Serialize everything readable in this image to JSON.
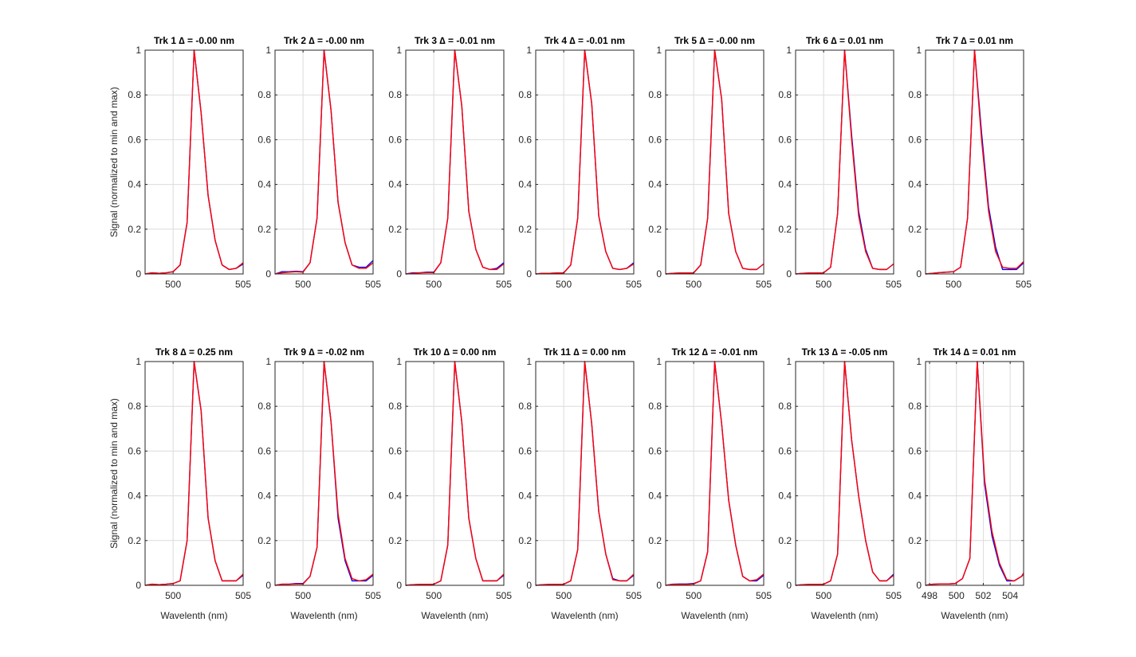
{
  "chart_data": {
    "type": "line",
    "ylabel": "Signal (normalized to min and max)",
    "xlabel": "Wavelenth (nm)",
    "ylim": [
      0,
      1
    ],
    "yticks": [
      0,
      0.2,
      0.4,
      0.6,
      0.8,
      1
    ],
    "ytick_labels": [
      "0",
      "0.2",
      "0.4",
      "0.6",
      "0.8",
      "1"
    ],
    "grid": true,
    "series_colors": {
      "blue": "#0000ff",
      "red": "#ff0000"
    },
    "subplots": [
      {
        "title": "Trk 1 ∆ = -0.00 nm",
        "xlim": [
          498,
          505
        ],
        "xticks": [
          500,
          505
        ],
        "xtick_labels": [
          "500",
          "505"
        ],
        "xlabel": "",
        "ylabel": "Signal (normalized to min and max)",
        "x": [
          498,
          498.5,
          499,
          499.5,
          500,
          500.5,
          501,
          501.5,
          502,
          502.5,
          503,
          503.5,
          504,
          504.5,
          505
        ],
        "series": [
          {
            "values": [
              0,
              0.005,
              0.003,
              0.005,
              0.01,
              0.04,
              0.23,
              1,
              0.72,
              0.35,
              0.15,
              0.04,
              0.02,
              0.025,
              0.045
            ]
          },
          {
            "values": [
              0,
              0.005,
              0.003,
              0.005,
              0.01,
              0.04,
              0.23,
              1,
              0.72,
              0.35,
              0.15,
              0.04,
              0.02,
              0.025,
              0.05
            ]
          }
        ]
      },
      {
        "title": "Trk 2 ∆ = -0.00 nm",
        "xlim": [
          498,
          505
        ],
        "xticks": [
          500,
          505
        ],
        "xtick_labels": [
          "500",
          "505"
        ],
        "xlabel": "",
        "ylabel": "",
        "x": [
          498,
          498.5,
          499,
          499.5,
          500,
          500.5,
          501,
          501.5,
          502,
          502.5,
          503,
          503.5,
          504,
          504.5,
          505
        ],
        "series": [
          {
            "values": [
              0,
              0.01,
              0.01,
              0.012,
              0.01,
              0.05,
              0.25,
              1,
              0.73,
              0.32,
              0.14,
              0.04,
              0.03,
              0.03,
              0.06
            ]
          },
          {
            "values": [
              0,
              0.005,
              0.008,
              0.01,
              0.008,
              0.05,
              0.25,
              1,
              0.73,
              0.32,
              0.14,
              0.04,
              0.025,
              0.025,
              0.05
            ]
          }
        ]
      },
      {
        "title": "Trk 3 ∆ = -0.01 nm",
        "xlim": [
          498,
          505
        ],
        "xticks": [
          500,
          505
        ],
        "xtick_labels": [
          "500",
          "505"
        ],
        "xlabel": "",
        "ylabel": "",
        "x": [
          498,
          498.5,
          499,
          499.5,
          500,
          500.5,
          501,
          501.5,
          502,
          502.5,
          503,
          503.5,
          504,
          504.5,
          505
        ],
        "series": [
          {
            "values": [
              0,
              0.005,
              0.005,
              0.008,
              0.008,
              0.05,
              0.25,
              1,
              0.75,
              0.28,
              0.11,
              0.03,
              0.02,
              0.025,
              0.05
            ]
          },
          {
            "values": [
              0,
              0.003,
              0.005,
              0.006,
              0.006,
              0.05,
              0.25,
              1,
              0.75,
              0.28,
              0.11,
              0.03,
              0.02,
              0.02,
              0.045
            ]
          }
        ]
      },
      {
        "title": "Trk 4 ∆ = -0.01 nm",
        "xlim": [
          498,
          505
        ],
        "xticks": [
          500,
          505
        ],
        "xtick_labels": [
          "500",
          "505"
        ],
        "xlabel": "",
        "ylabel": "",
        "x": [
          498,
          498.5,
          499,
          499.5,
          500,
          500.5,
          501,
          501.5,
          502,
          502.5,
          503,
          503.5,
          504,
          504.5,
          505
        ],
        "series": [
          {
            "values": [
              0,
              0.003,
              0.003,
              0.004,
              0.005,
              0.04,
              0.25,
              1,
              0.76,
              0.26,
              0.1,
              0.025,
              0.02,
              0.025,
              0.05
            ]
          },
          {
            "values": [
              0,
              0.003,
              0.003,
              0.004,
              0.005,
              0.04,
              0.25,
              1,
              0.76,
              0.26,
              0.1,
              0.025,
              0.02,
              0.025,
              0.045
            ]
          }
        ]
      },
      {
        "title": "Trk 5 ∆ = -0.00 nm",
        "xlim": [
          498,
          505
        ],
        "xticks": [
          500,
          505
        ],
        "xtick_labels": [
          "500",
          "505"
        ],
        "xlabel": "",
        "ylabel": "",
        "x": [
          498,
          498.5,
          499,
          499.5,
          500,
          500.5,
          501,
          501.5,
          502,
          502.5,
          503,
          503.5,
          504,
          504.5,
          505
        ],
        "series": [
          {
            "values": [
              0,
              0.003,
              0.004,
              0.004,
              0.005,
              0.04,
              0.25,
              1,
              0.78,
              0.27,
              0.1,
              0.025,
              0.02,
              0.02,
              0.045
            ]
          },
          {
            "values": [
              0,
              0.003,
              0.004,
              0.004,
              0.005,
              0.04,
              0.25,
              1,
              0.78,
              0.27,
              0.1,
              0.025,
              0.02,
              0.02,
              0.045
            ]
          }
        ]
      },
      {
        "title": "Trk 6 ∆ = 0.01 nm",
        "xlim": [
          498,
          505
        ],
        "xticks": [
          500,
          505
        ],
        "xtick_labels": [
          "500",
          "505"
        ],
        "xlabel": "",
        "ylabel": "",
        "x": [
          498,
          498.5,
          499,
          499.5,
          500,
          500.5,
          501,
          501.5,
          502,
          502.5,
          503,
          503.5,
          504,
          504.5,
          505
        ],
        "series": [
          {
            "values": [
              0,
              0.003,
              0.004,
              0.004,
              0.005,
              0.03,
              0.27,
              1,
              0.62,
              0.28,
              0.11,
              0.025,
              0.02,
              0.02,
              0.045
            ]
          },
          {
            "values": [
              0,
              0.003,
              0.004,
              0.004,
              0.005,
              0.03,
              0.27,
              1,
              0.6,
              0.26,
              0.1,
              0.025,
              0.02,
              0.02,
              0.045
            ]
          }
        ]
      },
      {
        "title": "Trk 7 ∆ = 0.01 nm",
        "xlim": [
          498,
          505
        ],
        "xticks": [
          500,
          505
        ],
        "xtick_labels": [
          "500",
          "505"
        ],
        "xlabel": "",
        "ylabel": "",
        "x": [
          498,
          498.5,
          499,
          499.5,
          500,
          500.5,
          501,
          501.5,
          502,
          502.5,
          503,
          503.5,
          504,
          504.5,
          505
        ],
        "series": [
          {
            "values": [
              0,
              0.003,
              0.006,
              0.008,
              0.01,
              0.03,
              0.25,
              1,
              0.63,
              0.3,
              0.12,
              0.02,
              0.02,
              0.02,
              0.05
            ]
          },
          {
            "values": [
              0,
              0.003,
              0.006,
              0.008,
              0.01,
              0.03,
              0.25,
              1,
              0.6,
              0.28,
              0.1,
              0.03,
              0.025,
              0.025,
              0.055
            ]
          }
        ]
      },
      {
        "title": "Trk 8 ∆ = 0.25 nm",
        "xlim": [
          498,
          505
        ],
        "xticks": [
          500,
          505
        ],
        "xtick_labels": [
          "500",
          "505"
        ],
        "xlabel": "Wavelenth (nm)",
        "ylabel": "Signal (normalized to min and max)",
        "x": [
          498,
          498.5,
          499,
          499.5,
          500,
          500.5,
          501,
          501.5,
          502,
          502.5,
          503,
          503.5,
          504,
          504.5,
          505
        ],
        "series": [
          {
            "values": [
              0,
              0.005,
              0.003,
              0.005,
              0.008,
              0.02,
              0.2,
              1,
              0.78,
              0.3,
              0.11,
              0.02,
              0.02,
              0.02,
              0.045
            ]
          },
          {
            "values": [
              0,
              0.005,
              0.003,
              0.005,
              0.008,
              0.02,
              0.2,
              1,
              0.78,
              0.3,
              0.11,
              0.02,
              0.02,
              0.02,
              0.05
            ]
          }
        ]
      },
      {
        "title": "Trk 9 ∆ = -0.02 nm",
        "xlim": [
          498,
          505
        ],
        "xticks": [
          500,
          505
        ],
        "xtick_labels": [
          "500",
          "505"
        ],
        "xlabel": "Wavelenth (nm)",
        "ylabel": "",
        "x": [
          498,
          498.5,
          499,
          499.5,
          500,
          500.5,
          501,
          501.5,
          502,
          502.5,
          503,
          503.5,
          504,
          504.5,
          505
        ],
        "series": [
          {
            "values": [
              0,
              0.005,
              0.005,
              0.008,
              0.008,
              0.04,
              0.17,
              1,
              0.73,
              0.3,
              0.11,
              0.02,
              0.02,
              0.02,
              0.045
            ]
          },
          {
            "values": [
              0,
              0.005,
              0.005,
              0.006,
              0.006,
              0.04,
              0.17,
              1,
              0.73,
              0.32,
              0.12,
              0.03,
              0.02,
              0.025,
              0.05
            ]
          }
        ]
      },
      {
        "title": "Trk 10 ∆ = 0.00 nm",
        "xlim": [
          498,
          505
        ],
        "xticks": [
          500,
          505
        ],
        "xtick_labels": [
          "500",
          "505"
        ],
        "xlabel": "Wavelenth (nm)",
        "ylabel": "",
        "x": [
          498,
          498.5,
          499,
          499.5,
          500,
          500.5,
          501,
          501.5,
          502,
          502.5,
          503,
          503.5,
          504,
          504.5,
          505
        ],
        "series": [
          {
            "values": [
              0,
              0.003,
              0.004,
              0.004,
              0.005,
              0.02,
              0.18,
              1,
              0.73,
              0.3,
              0.12,
              0.02,
              0.02,
              0.02,
              0.045
            ]
          },
          {
            "values": [
              0,
              0.003,
              0.004,
              0.004,
              0.005,
              0.02,
              0.18,
              1,
              0.73,
              0.3,
              0.12,
              0.02,
              0.02,
              0.02,
              0.05
            ]
          }
        ]
      },
      {
        "title": "Trk 11 ∆ = 0.00 nm",
        "xlim": [
          498,
          505
        ],
        "xticks": [
          500,
          505
        ],
        "xtick_labels": [
          "500",
          "505"
        ],
        "xlabel": "Wavelenth (nm)",
        "ylabel": "",
        "x": [
          498,
          498.5,
          499,
          499.5,
          500,
          500.5,
          501,
          501.5,
          502,
          502.5,
          503,
          503.5,
          504,
          504.5,
          505
        ],
        "series": [
          {
            "values": [
              0,
              0.003,
              0.004,
              0.004,
              0.005,
              0.02,
              0.16,
              1,
              0.72,
              0.33,
              0.14,
              0.03,
              0.02,
              0.02,
              0.045
            ]
          },
          {
            "values": [
              0,
              0.003,
              0.004,
              0.004,
              0.005,
              0.02,
              0.16,
              1,
              0.72,
              0.33,
              0.14,
              0.025,
              0.02,
              0.02,
              0.05
            ]
          }
        ]
      },
      {
        "title": "Trk 12 ∆ = -0.01 nm",
        "xlim": [
          498,
          505
        ],
        "xticks": [
          500,
          505
        ],
        "xtick_labels": [
          "500",
          "505"
        ],
        "xlabel": "Wavelenth (nm)",
        "ylabel": "",
        "x": [
          498,
          498.5,
          499,
          499.5,
          500,
          500.5,
          501,
          501.5,
          502,
          502.5,
          503,
          503.5,
          504,
          504.5,
          505
        ],
        "series": [
          {
            "values": [
              0,
              0.005,
              0.006,
              0.006,
              0.008,
              0.02,
              0.15,
              1,
              0.72,
              0.38,
              0.18,
              0.04,
              0.02,
              0.02,
              0.045
            ]
          },
          {
            "values": [
              0,
              0.004,
              0.004,
              0.004,
              0.006,
              0.02,
              0.15,
              1,
              0.72,
              0.38,
              0.18,
              0.04,
              0.02,
              0.025,
              0.05
            ]
          }
        ]
      },
      {
        "title": "Trk 13 ∆ = -0.05 nm",
        "xlim": [
          498,
          505
        ],
        "xticks": [
          500,
          505
        ],
        "xtick_labels": [
          "500",
          "505"
        ],
        "xlabel": "Wavelenth (nm)",
        "ylabel": "",
        "x": [
          498,
          498.5,
          499,
          499.5,
          500,
          500.5,
          501,
          501.5,
          502,
          502.5,
          503,
          503.5,
          504,
          504.5,
          505
        ],
        "series": [
          {
            "values": [
              0,
              0.003,
              0.004,
              0.004,
              0.005,
              0.02,
              0.14,
              1,
              0.65,
              0.4,
              0.2,
              0.06,
              0.02,
              0.02,
              0.05
            ]
          },
          {
            "values": [
              0,
              0.003,
              0.004,
              0.004,
              0.005,
              0.02,
              0.14,
              1,
              0.65,
              0.4,
              0.2,
              0.06,
              0.02,
              0.02,
              0.045
            ]
          }
        ]
      },
      {
        "title": "Trk 14 ∆ = 0.01 nm",
        "xlim": [
          497.7,
          505
        ],
        "xticks": [
          498,
          500,
          502,
          504
        ],
        "xtick_labels": [
          "498",
          "500",
          "502",
          "504"
        ],
        "xlabel": "Wavelenth (nm)",
        "ylabel": "",
        "x": [
          497.7,
          498.25,
          498.8,
          499.35,
          499.9,
          500.45,
          501,
          501.55,
          502.1,
          502.65,
          503.2,
          503.75,
          504.3,
          504.85,
          505
        ],
        "series": [
          {
            "values": [
              0,
              0.005,
              0.006,
              0.006,
              0.008,
              0.03,
              0.12,
              1,
              0.45,
              0.22,
              0.09,
              0.02,
              0.02,
              0.04,
              0.05
            ]
          },
          {
            "values": [
              0,
              0.005,
              0.006,
              0.006,
              0.008,
              0.03,
              0.12,
              1,
              0.47,
              0.24,
              0.1,
              0.025,
              0.02,
              0.04,
              0.055
            ]
          }
        ]
      }
    ]
  }
}
